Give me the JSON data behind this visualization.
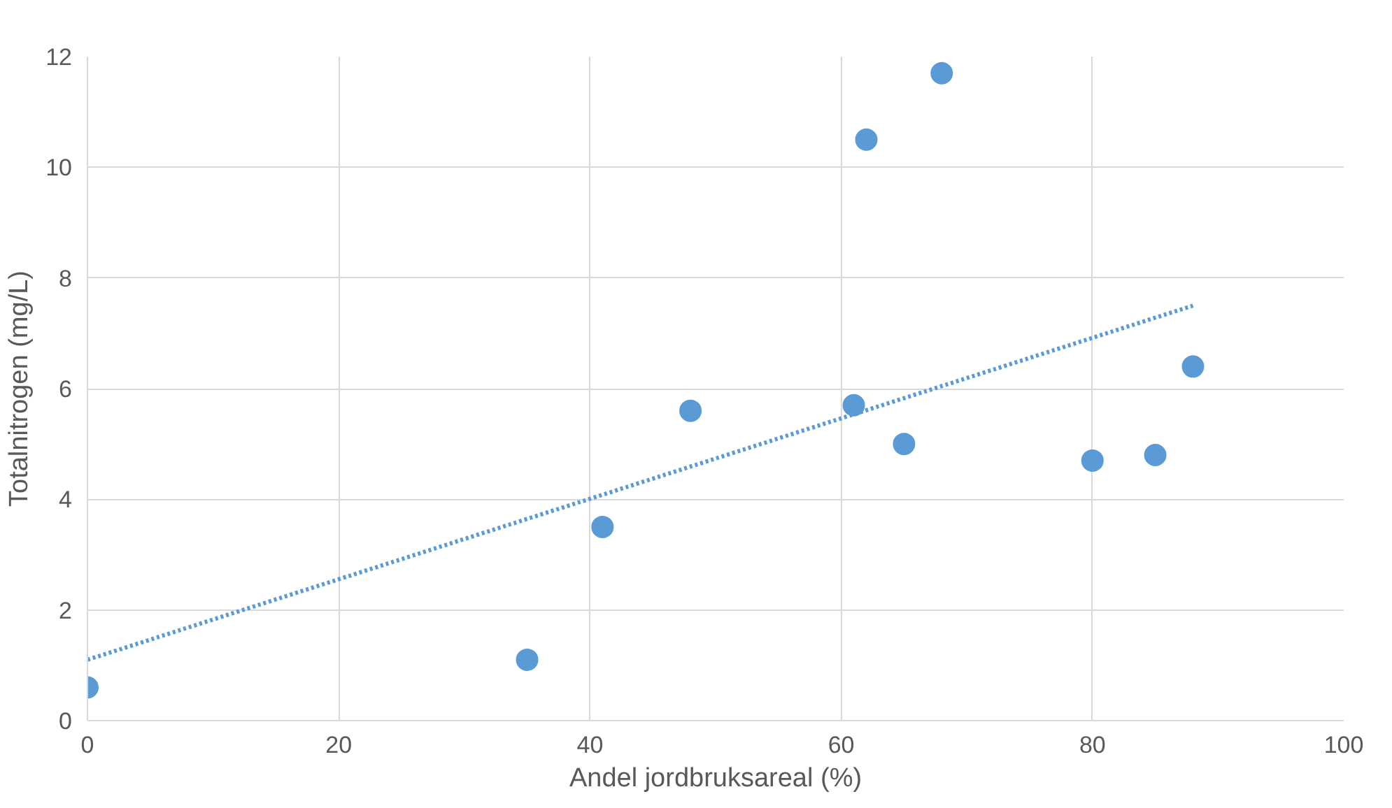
{
  "chart_data": {
    "type": "scatter",
    "xlabel": "Andel jordbruksareal (%)",
    "ylabel": "Totalnitrogen (mg/L)",
    "xlim": [
      0,
      100
    ],
    "xticks": [
      0,
      20,
      40,
      60,
      80,
      100
    ],
    "ylim": [
      0,
      12
    ],
    "yticks": [
      0,
      2,
      4,
      6,
      8,
      10,
      12
    ],
    "grid": true,
    "series": [
      {
        "color": "#5b9bd5",
        "marker": "circle",
        "x": [
          0,
          35,
          41,
          48,
          61,
          62,
          65,
          68,
          80,
          85,
          88
        ],
        "values": [
          0.6,
          1.1,
          3.5,
          5.6,
          5.7,
          10.5,
          5.0,
          11.7,
          4.7,
          4.8,
          6.4
        ]
      },
      {
        "type": "line",
        "color": "#5b9bd5",
        "line_style": "dotted",
        "x": [
          0,
          88
        ],
        "values": [
          1.1,
          7.5
        ]
      }
    ]
  }
}
